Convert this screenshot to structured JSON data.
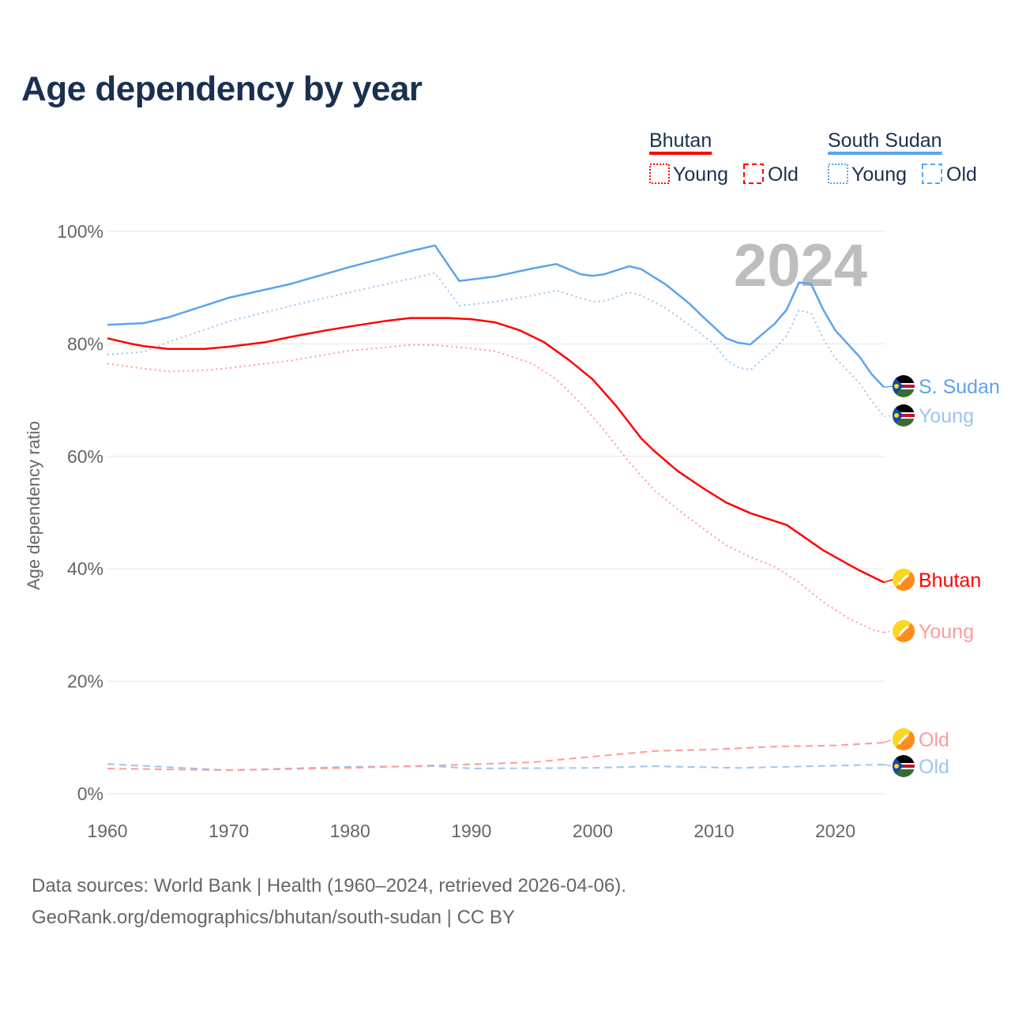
{
  "title": "Age dependency by year",
  "footer": {
    "line1": "Data sources: World Bank | Health (1960–2024, retrieved 2026-04-06).",
    "line2": "GeoRank.org/demographics/bhutan/south-sudan | CC BY"
  },
  "legend": {
    "groups": [
      {
        "name": "Bhutan",
        "color": "#ff0000",
        "young": "Young",
        "old": "Old"
      },
      {
        "name": "South Sudan",
        "color": "#5ba4ec",
        "young": "Young",
        "old": "Old"
      }
    ]
  },
  "chart_data": {
    "type": "line",
    "title": "Age dependency by year",
    "xlabel": "",
    "ylabel": "Age dependency ratio",
    "xlim": [
      1960,
      2024
    ],
    "ylim": [
      0,
      100
    ],
    "xticks": [
      "1960",
      "1970",
      "1980",
      "1990",
      "2000",
      "2010",
      "2020"
    ],
    "yticks": [
      "0%",
      "20%",
      "40%",
      "60%",
      "80%",
      "100%"
    ],
    "grid": true,
    "year_label": "2024",
    "series": [
      {
        "name": "South Sudan",
        "end_label": "S. Sudan",
        "style": "solid",
        "color": "#5ba4ec",
        "flag": "south-sudan",
        "points": [
          [
            1960,
            83.4
          ],
          [
            1963,
            83.7
          ],
          [
            1965,
            84.7
          ],
          [
            1970,
            88.2
          ],
          [
            1975,
            90.6
          ],
          [
            1980,
            93.7
          ],
          [
            1985,
            96.5
          ],
          [
            1987,
            97.5
          ],
          [
            1989,
            91.2
          ],
          [
            1992,
            92.0
          ],
          [
            1995,
            93.4
          ],
          [
            1997,
            94.2
          ],
          [
            1999,
            92.4
          ],
          [
            2000,
            92.1
          ],
          [
            2001,
            92.4
          ],
          [
            2003,
            93.8
          ],
          [
            2004,
            93.3
          ],
          [
            2006,
            90.6
          ],
          [
            2008,
            87.1
          ],
          [
            2009,
            85.0
          ],
          [
            2011,
            81.0
          ],
          [
            2012,
            80.2
          ],
          [
            2013,
            79.9
          ],
          [
            2015,
            83.6
          ],
          [
            2016,
            86.1
          ],
          [
            2017,
            90.9
          ],
          [
            2018,
            90.7
          ],
          [
            2019,
            86.1
          ],
          [
            2020,
            82.4
          ],
          [
            2022,
            77.7
          ],
          [
            2023,
            74.6
          ],
          [
            2024,
            72.3
          ]
        ]
      },
      {
        "name": "South Sudan Young",
        "end_label": "Young",
        "style": "dotted",
        "color": "#9dc5ef",
        "flag": "south-sudan",
        "points": [
          [
            1960,
            78.1
          ],
          [
            1963,
            78.6
          ],
          [
            1965,
            80.3
          ],
          [
            1970,
            84.0
          ],
          [
            1975,
            86.7
          ],
          [
            1980,
            89.2
          ],
          [
            1985,
            91.6
          ],
          [
            1987,
            92.6
          ],
          [
            1989,
            86.8
          ],
          [
            1992,
            87.5
          ],
          [
            1995,
            88.6
          ],
          [
            1997,
            89.5
          ],
          [
            2000,
            87.5
          ],
          [
            2001,
            87.6
          ],
          [
            2003,
            89.2
          ],
          [
            2004,
            88.6
          ],
          [
            2006,
            86.4
          ],
          [
            2008,
            83.3
          ],
          [
            2010,
            80.0
          ],
          [
            2011,
            77.2
          ],
          [
            2012,
            75.8
          ],
          [
            2013,
            75.4
          ],
          [
            2015,
            79.1
          ],
          [
            2016,
            81.5
          ],
          [
            2017,
            86.0
          ],
          [
            2018,
            85.5
          ],
          [
            2019,
            81.0
          ],
          [
            2020,
            77.5
          ],
          [
            2022,
            73.0
          ],
          [
            2023,
            69.9
          ],
          [
            2024,
            67.1
          ]
        ]
      },
      {
        "name": "South Sudan Old",
        "end_label": "Old",
        "style": "dashed",
        "color": "#9dc5ef",
        "flag": "south-sudan",
        "points": [
          [
            1960,
            5.3
          ],
          [
            1970,
            4.2
          ],
          [
            1980,
            4.8
          ],
          [
            1987,
            4.9
          ],
          [
            1990,
            4.5
          ],
          [
            2000,
            4.6
          ],
          [
            2005,
            4.9
          ],
          [
            2012,
            4.6
          ],
          [
            2018,
            4.9
          ],
          [
            2024,
            5.2
          ]
        ]
      },
      {
        "name": "Bhutan",
        "end_label": "Bhutan",
        "style": "solid",
        "color": "#ff0000",
        "flag": "bhutan",
        "points": [
          [
            1960,
            81.0
          ],
          [
            1962,
            80.0
          ],
          [
            1963,
            79.6
          ],
          [
            1965,
            79.1
          ],
          [
            1968,
            79.1
          ],
          [
            1970,
            79.5
          ],
          [
            1973,
            80.3
          ],
          [
            1975,
            81.2
          ],
          [
            1978,
            82.4
          ],
          [
            1980,
            83.1
          ],
          [
            1983,
            84.1
          ],
          [
            1985,
            84.6
          ],
          [
            1988,
            84.6
          ],
          [
            1990,
            84.4
          ],
          [
            1992,
            83.8
          ],
          [
            1994,
            82.4
          ],
          [
            1996,
            80.3
          ],
          [
            1998,
            77.2
          ],
          [
            2000,
            73.7
          ],
          [
            2002,
            68.8
          ],
          [
            2004,
            63.2
          ],
          [
            2005,
            61.1
          ],
          [
            2007,
            57.4
          ],
          [
            2009,
            54.5
          ],
          [
            2011,
            51.8
          ],
          [
            2013,
            49.9
          ],
          [
            2016,
            47.8
          ],
          [
            2017,
            46.3
          ],
          [
            2019,
            43.3
          ],
          [
            2021,
            40.9
          ],
          [
            2022,
            39.7
          ],
          [
            2024,
            37.6
          ]
        ]
      },
      {
        "name": "Bhutan Young",
        "end_label": "Young",
        "style": "dotted",
        "color": "#ff9a9a",
        "flag": "bhutan",
        "points": [
          [
            1960,
            76.5
          ],
          [
            1963,
            75.6
          ],
          [
            1965,
            75.1
          ],
          [
            1968,
            75.3
          ],
          [
            1970,
            75.7
          ],
          [
            1975,
            77.0
          ],
          [
            1980,
            78.8
          ],
          [
            1985,
            79.8
          ],
          [
            1987,
            79.8
          ],
          [
            1990,
            79.2
          ],
          [
            1992,
            78.7
          ],
          [
            1995,
            76.5
          ],
          [
            1997,
            73.7
          ],
          [
            1999,
            69.5
          ],
          [
            2001,
            64.5
          ],
          [
            2003,
            59.0
          ],
          [
            2005,
            54.1
          ],
          [
            2007,
            50.6
          ],
          [
            2009,
            47.3
          ],
          [
            2011,
            44.2
          ],
          [
            2013,
            42.1
          ],
          [
            2015,
            40.4
          ],
          [
            2017,
            37.6
          ],
          [
            2019,
            34.1
          ],
          [
            2021,
            31.3
          ],
          [
            2023,
            29.2
          ],
          [
            2024,
            28.7
          ]
        ]
      },
      {
        "name": "Bhutan Old",
        "end_label": "Old",
        "style": "dashed",
        "color": "#ff9a9a",
        "flag": "bhutan",
        "points": [
          [
            1960,
            4.5
          ],
          [
            1970,
            4.2
          ],
          [
            1980,
            4.6
          ],
          [
            1988,
            5.1
          ],
          [
            1995,
            5.6
          ],
          [
            2000,
            6.6
          ],
          [
            2005,
            7.6
          ],
          [
            2010,
            7.9
          ],
          [
            2015,
            8.4
          ],
          [
            2020,
            8.6
          ],
          [
            2024,
            9.1
          ]
        ]
      }
    ]
  }
}
